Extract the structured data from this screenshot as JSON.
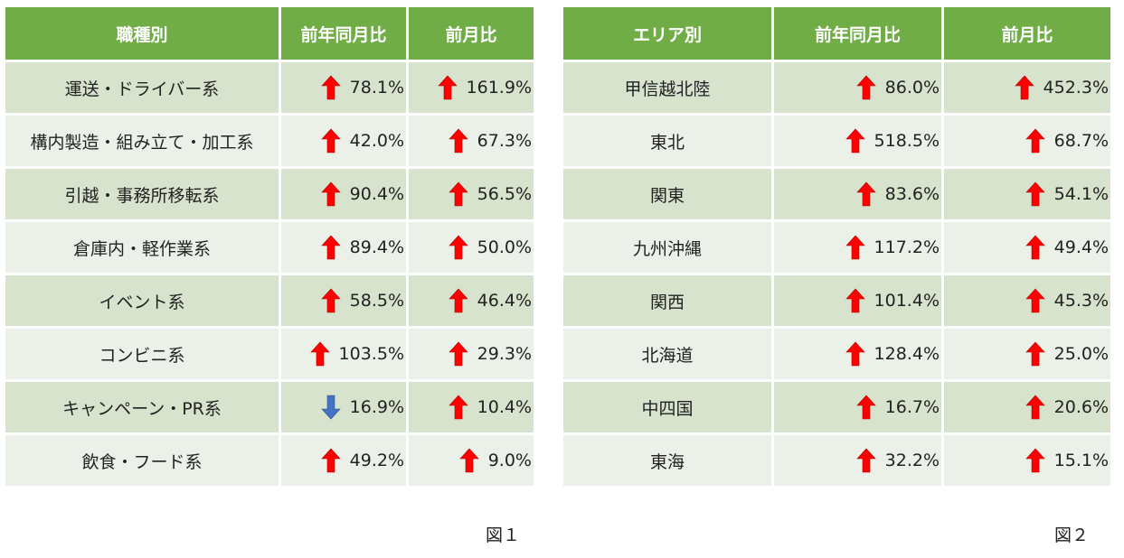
{
  "figure1": {
    "headers": [
      "職種別",
      "前年同月比",
      "前月比"
    ],
    "rows": [
      {
        "name": "運送・ドライバー系",
        "yoy": {
          "dir": "up",
          "value": "78.1%"
        },
        "mom": {
          "dir": "up",
          "value": "161.9%"
        }
      },
      {
        "name": "構内製造・組み立て・加工系",
        "yoy": {
          "dir": "up",
          "value": "42.0%"
        },
        "mom": {
          "dir": "up",
          "value": "67.3%"
        }
      },
      {
        "name": "引越・事務所移転系",
        "yoy": {
          "dir": "up",
          "value": "90.4%"
        },
        "mom": {
          "dir": "up",
          "value": "56.5%"
        }
      },
      {
        "name": "倉庫内・軽作業系",
        "yoy": {
          "dir": "up",
          "value": "89.4%"
        },
        "mom": {
          "dir": "up",
          "value": "50.0%"
        }
      },
      {
        "name": "イベント系",
        "yoy": {
          "dir": "up",
          "value": "58.5%"
        },
        "mom": {
          "dir": "up",
          "value": "46.4%"
        }
      },
      {
        "name": "コンビニ系",
        "yoy": {
          "dir": "up",
          "value": "103.5%"
        },
        "mom": {
          "dir": "up",
          "value": "29.3%"
        }
      },
      {
        "name": "キャンペーン・PR系",
        "yoy": {
          "dir": "down",
          "value": "16.9%"
        },
        "mom": {
          "dir": "up",
          "value": "10.4%"
        }
      },
      {
        "name": "飲食・フード系",
        "yoy": {
          "dir": "up",
          "value": "49.2%"
        },
        "mom": {
          "dir": "up",
          "value": "9.0%"
        }
      }
    ],
    "caption": "図１"
  },
  "figure2": {
    "headers": [
      "エリア別",
      "前年同月比",
      "前月比"
    ],
    "rows": [
      {
        "name": "甲信越北陸",
        "yoy": {
          "dir": "up",
          "value": "86.0%"
        },
        "mom": {
          "dir": "up",
          "value": "452.3%"
        }
      },
      {
        "name": "東北",
        "yoy": {
          "dir": "up",
          "value": "518.5%"
        },
        "mom": {
          "dir": "up",
          "value": "68.7%"
        }
      },
      {
        "name": "関東",
        "yoy": {
          "dir": "up",
          "value": "83.6%"
        },
        "mom": {
          "dir": "up",
          "value": "54.1%"
        }
      },
      {
        "name": "九州沖縄",
        "yoy": {
          "dir": "up",
          "value": "117.2%"
        },
        "mom": {
          "dir": "up",
          "value": "49.4%"
        }
      },
      {
        "name": "関西",
        "yoy": {
          "dir": "up",
          "value": "101.4%"
        },
        "mom": {
          "dir": "up",
          "value": "45.3%"
        }
      },
      {
        "name": "北海道",
        "yoy": {
          "dir": "up",
          "value": "128.4%"
        },
        "mom": {
          "dir": "up",
          "value": "25.0%"
        }
      },
      {
        "name": "中四国",
        "yoy": {
          "dir": "up",
          "value": "16.7%"
        },
        "mom": {
          "dir": "up",
          "value": "20.6%"
        }
      },
      {
        "name": "東海",
        "yoy": {
          "dir": "up",
          "value": "32.2%"
        },
        "mom": {
          "dir": "up",
          "value": "15.1%"
        }
      }
    ],
    "caption": "図２"
  },
  "colors": {
    "header_bg": "#70ad47",
    "up_arrow": "#ff0000",
    "down_arrow": "#4472c4"
  },
  "icons": {
    "up": "arrow-up-icon",
    "down": "arrow-down-icon"
  }
}
